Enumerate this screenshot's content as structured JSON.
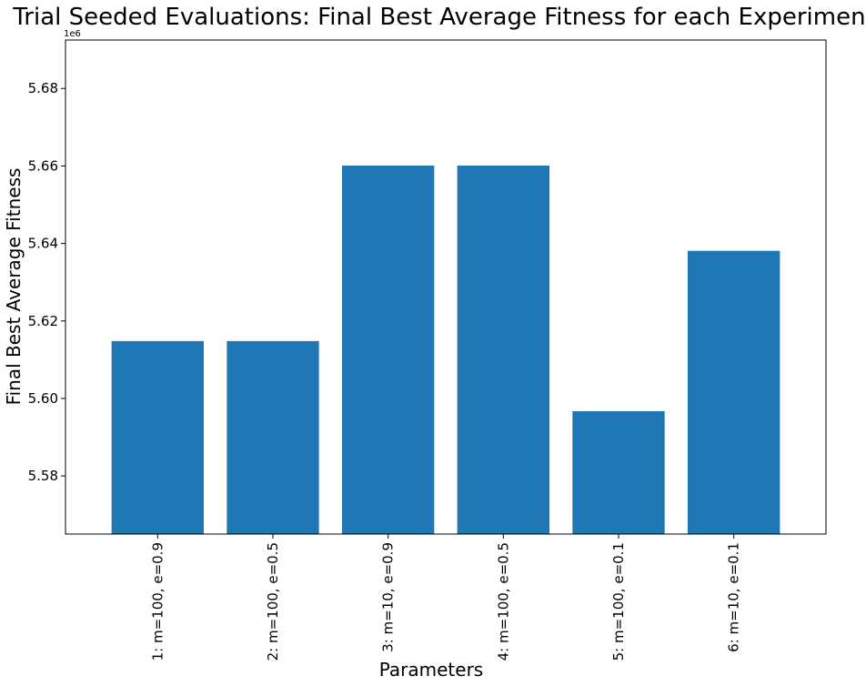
{
  "chart_data": {
    "type": "bar",
    "title": "Trial Seeded Evaluations: Final Best Average Fitness for each Experiment",
    "xlabel": "Parameters",
    "ylabel": "Final Best Average Fitness",
    "offset_label": "1e6",
    "categories": [
      "1: m=100, e=0.9",
      "2: m=100, e=0.5",
      "3: m=10, e=0.9",
      "4: m=100, e=0.5",
      "5: m=100, e=0.1",
      "6: m=10, e=0.1"
    ],
    "values": [
      5614800,
      5614800,
      5660100,
      5660100,
      5596700,
      5638100
    ],
    "ylim": [
      5565000,
      5692500
    ],
    "yticks": [
      5580000,
      5600000,
      5620000,
      5640000,
      5660000,
      5680000
    ],
    "ytick_labels": [
      "5.58",
      "5.60",
      "5.62",
      "5.64",
      "5.66",
      "5.68"
    ],
    "bar_color": "#1f77b4",
    "grid": false,
    "legend": "none"
  }
}
